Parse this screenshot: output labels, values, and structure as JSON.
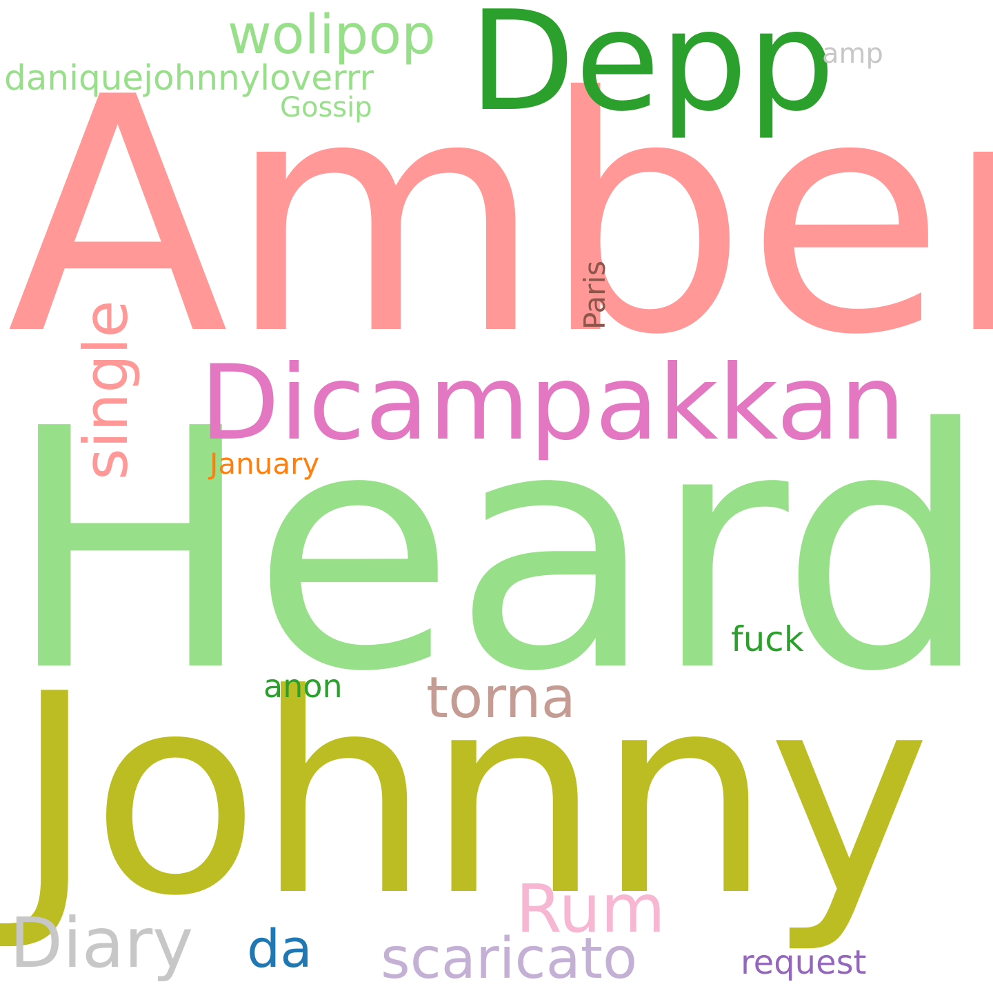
{
  "words": [
    {
      "text": "Amber",
      "color": "#ff9896"
    },
    {
      "text": "Heard",
      "color": "#98df8a"
    },
    {
      "text": "Johnny",
      "color": "#bcbd22"
    },
    {
      "text": "Depp",
      "color": "#2ca02c"
    },
    {
      "text": "Dicampakkan",
      "color": "#e377c2"
    },
    {
      "text": "wolipop",
      "color": "#98df8a"
    },
    {
      "text": "daniquejohnnyloverrr",
      "color": "#98df8a"
    },
    {
      "text": "Gossip",
      "color": "#98df8a"
    },
    {
      "text": "amp",
      "color": "#c7c7c7"
    },
    {
      "text": "single",
      "color": "#ff9896"
    },
    {
      "text": "Paris",
      "color": "#8c564b"
    },
    {
      "text": "January",
      "color": "#ff7f0e"
    },
    {
      "text": "fuck",
      "color": "#2ca02c"
    },
    {
      "text": "anon",
      "color": "#2ca02c"
    },
    {
      "text": "torna",
      "color": "#c49c94"
    },
    {
      "text": "Rum",
      "color": "#f7b6d2"
    },
    {
      "text": "Diary",
      "color": "#c7c7c7"
    },
    {
      "text": "da",
      "color": "#1f77b4"
    },
    {
      "text": "scaricato",
      "color": "#c5b0d5"
    },
    {
      "text": "request",
      "color": "#9467bd"
    }
  ]
}
